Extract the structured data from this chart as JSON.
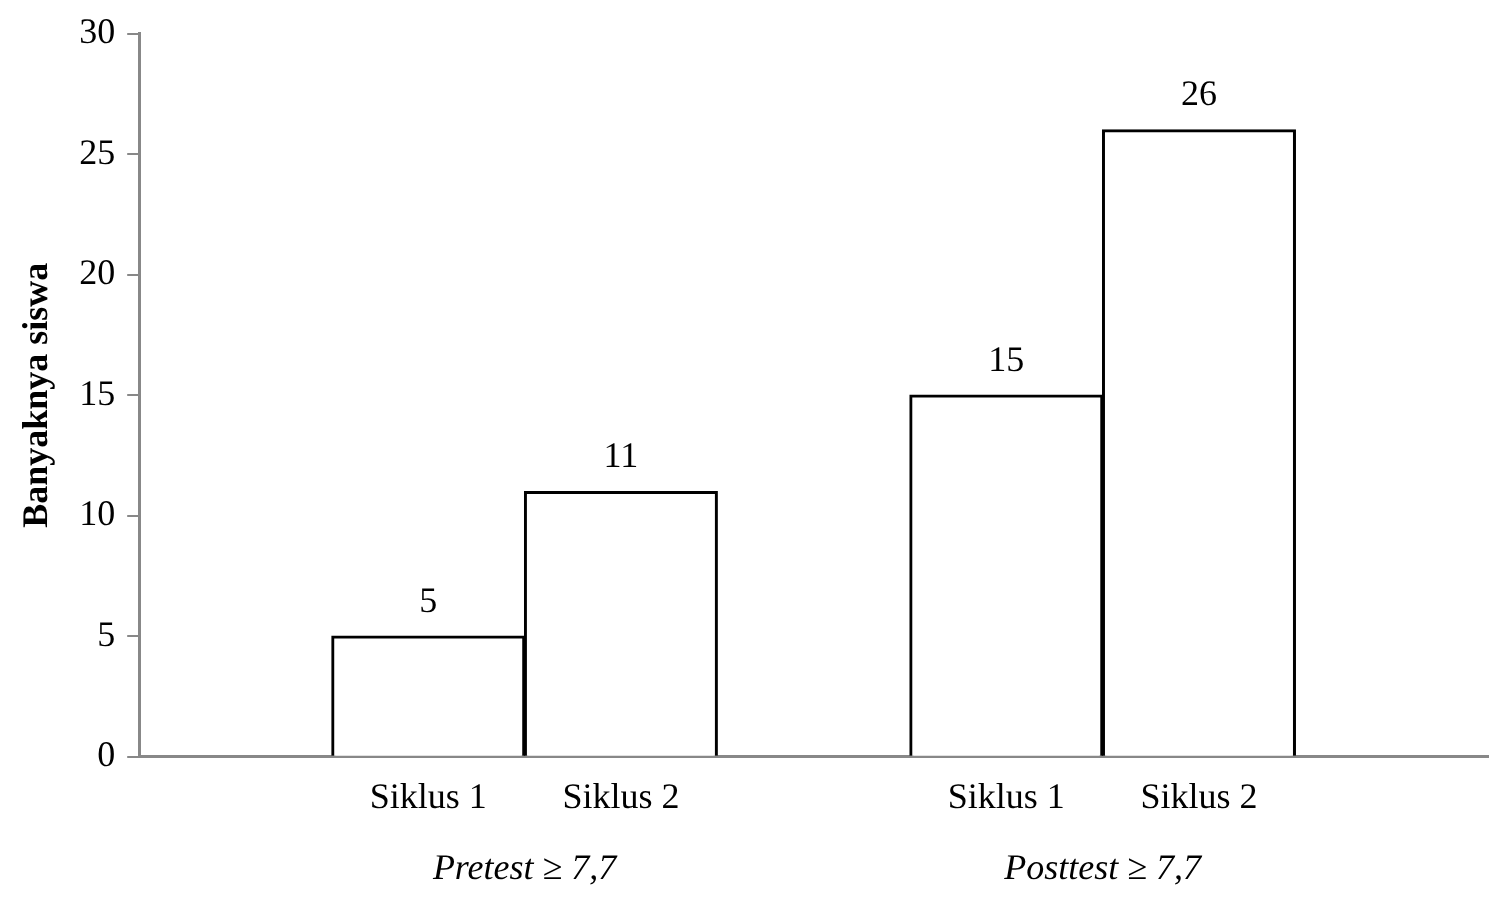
{
  "chart_data": {
    "type": "bar",
    "ylabel": "Banyaknya siswa",
    "categories": [
      null,
      "Siklus 1",
      "Siklus 2",
      null,
      "Siklus 1",
      "Siklus 2",
      null
    ],
    "values": [
      null,
      5,
      11,
      null,
      15,
      26,
      null
    ],
    "color": "#ffffff",
    "ylim": [
      0,
      30
    ],
    "yticks": [
      0,
      5,
      10,
      15,
      20,
      25,
      30
    ],
    "data_labels": true,
    "grid": false,
    "legend": false,
    "annotations": [
      "Pretest ≥ 7,7",
      "Posttest ≥ 7,7"
    ]
  }
}
